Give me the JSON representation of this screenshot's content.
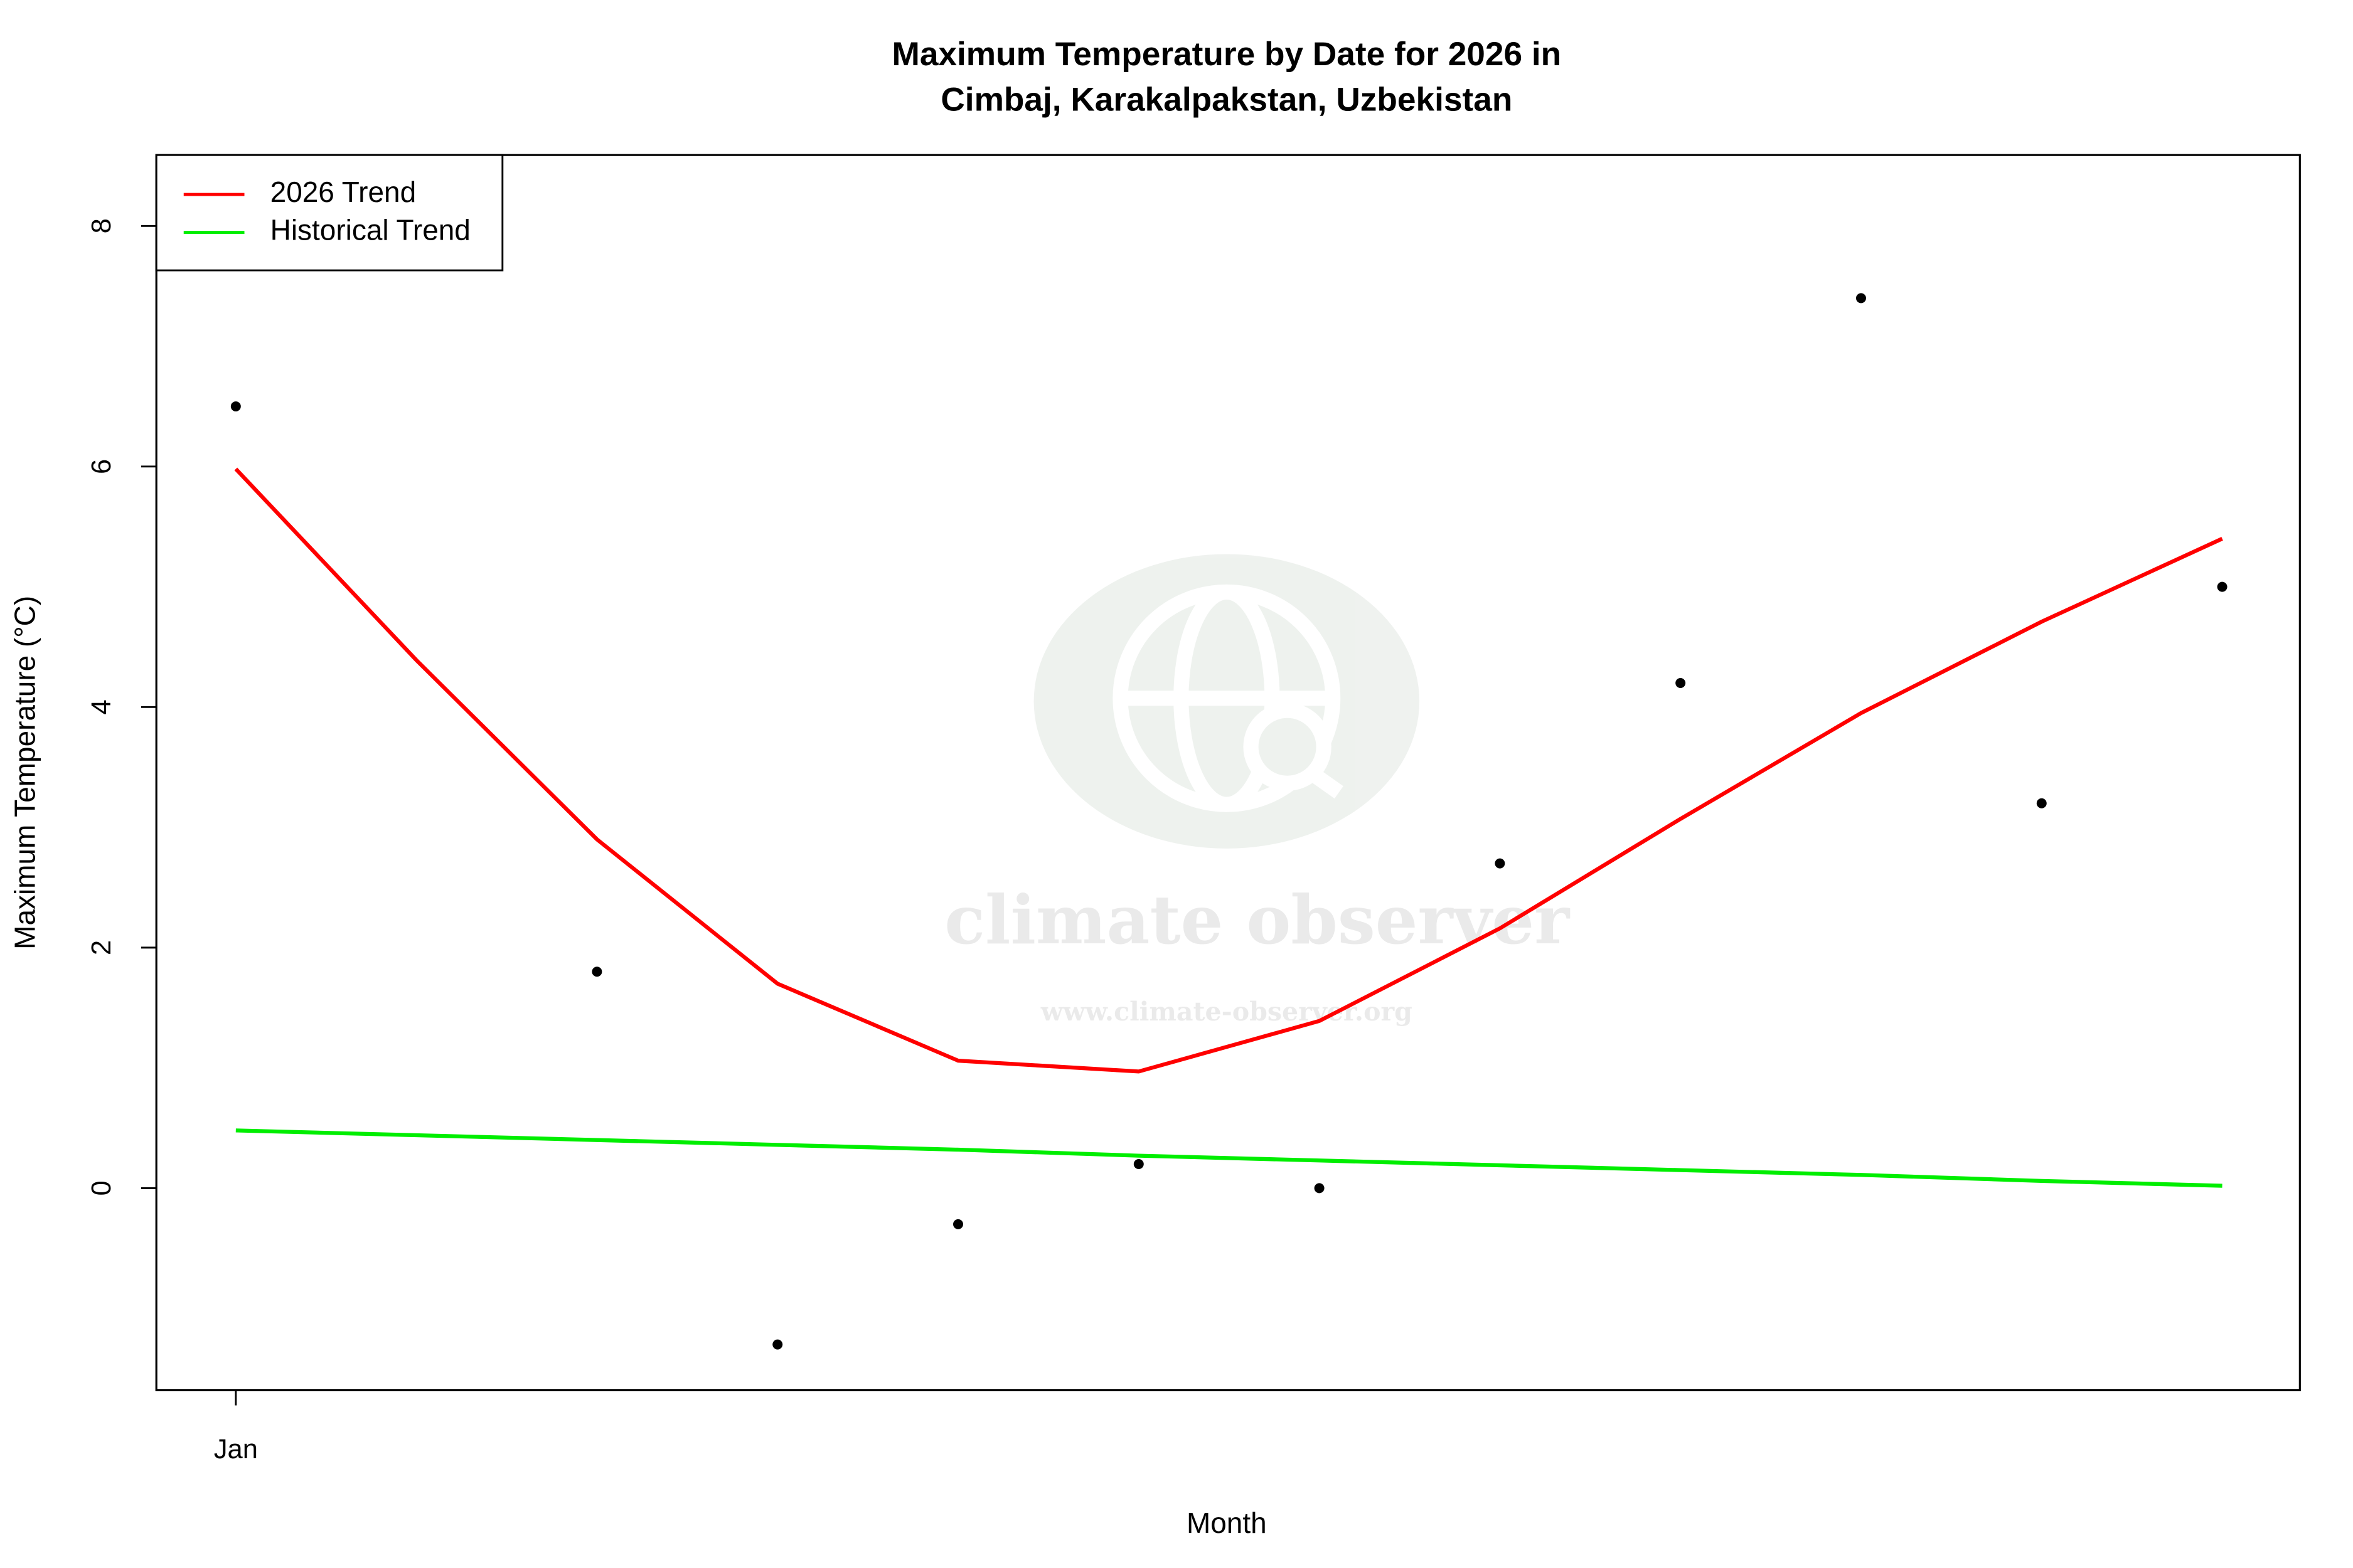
{
  "chart_data": {
    "type": "line",
    "title": "Maximum Temperature by Date for 2026 in",
    "subtitle": "Cimbaj, Karakalpakstan, Uzbekistan",
    "x_label": "Month",
    "y_label": "Maximum Temperature (°C)",
    "categories": [
      "Jan",
      null,
      null,
      null,
      null,
      null,
      null,
      null,
      null,
      null,
      null,
      null
    ],
    "xlim": [
      -0.44,
      11.43
    ],
    "ylim": [
      -1.68,
      8.59
    ],
    "yticks": [
      0,
      2,
      4,
      6,
      8
    ],
    "points": {
      "color": "#000000",
      "values": [
        6.5,
        null,
        1.8,
        -1.3,
        -0.3,
        0.2,
        0.0,
        2.7,
        4.2,
        7.4,
        3.2,
        5.0
      ]
    },
    "series": [
      {
        "name": "2026 Trend",
        "color": "#ff0000",
        "values": [
          5.98,
          4.39,
          2.9,
          1.7,
          1.06,
          0.97,
          1.39,
          2.16,
          3.07,
          3.95,
          4.71,
          5.4
        ]
      },
      {
        "name": "Historical Trend",
        "color": "#00ee00",
        "values": [
          0.48,
          0.44,
          0.4,
          0.36,
          0.32,
          0.27,
          0.23,
          0.19,
          0.15,
          0.11,
          0.06,
          0.02
        ]
      }
    ],
    "legend": "top-left",
    "watermark": {
      "name": "climate observer",
      "url": "www.climate-observer.org"
    }
  }
}
